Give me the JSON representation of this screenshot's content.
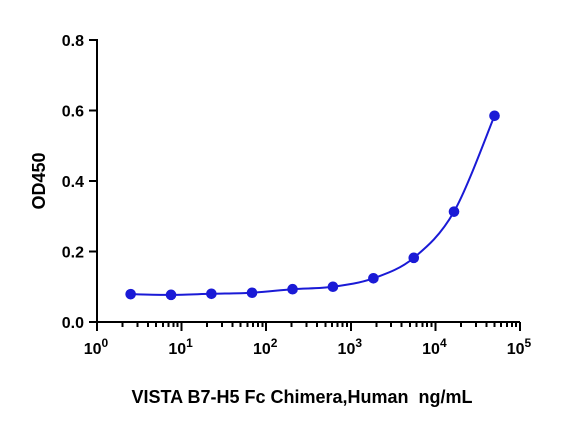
{
  "chart_data": {
    "type": "scatter",
    "title": "",
    "xlabel": "VISTA B7-H5 Fc Chimera,Human  ng/mL",
    "ylabel": "OD450",
    "x_scale": "log10",
    "xlim": [
      1,
      100000
    ],
    "ylim": [
      0.0,
      0.8
    ],
    "x_tick_labels": [
      {
        "base": "10",
        "exp": "0"
      },
      {
        "base": "10",
        "exp": "1"
      },
      {
        "base": "10",
        "exp": "2"
      },
      {
        "base": "10",
        "exp": "3"
      },
      {
        "base": "10",
        "exp": "4"
      },
      {
        "base": "10",
        "exp": "5"
      }
    ],
    "y_ticks": [
      0.0,
      0.2,
      0.4,
      0.6,
      0.8
    ],
    "y_tick_labels": [
      "0.0",
      "0.2",
      "0.4",
      "0.6",
      "0.8"
    ],
    "grid": false,
    "legend": "none",
    "series": [
      {
        "color": "#1a1ad6",
        "marker": "circle",
        "fit_line": true,
        "points": [
          {
            "x": 2.5,
            "y": 0.079
          },
          {
            "x": 7.5,
            "y": 0.077
          },
          {
            "x": 22.5,
            "y": 0.08
          },
          {
            "x": 68,
            "y": 0.083
          },
          {
            "x": 205,
            "y": 0.093
          },
          {
            "x": 615,
            "y": 0.1
          },
          {
            "x": 1850,
            "y": 0.124
          },
          {
            "x": 5550,
            "y": 0.182
          },
          {
            "x": 16600,
            "y": 0.313
          },
          {
            "x": 50000,
            "y": 0.585
          }
        ]
      }
    ]
  }
}
